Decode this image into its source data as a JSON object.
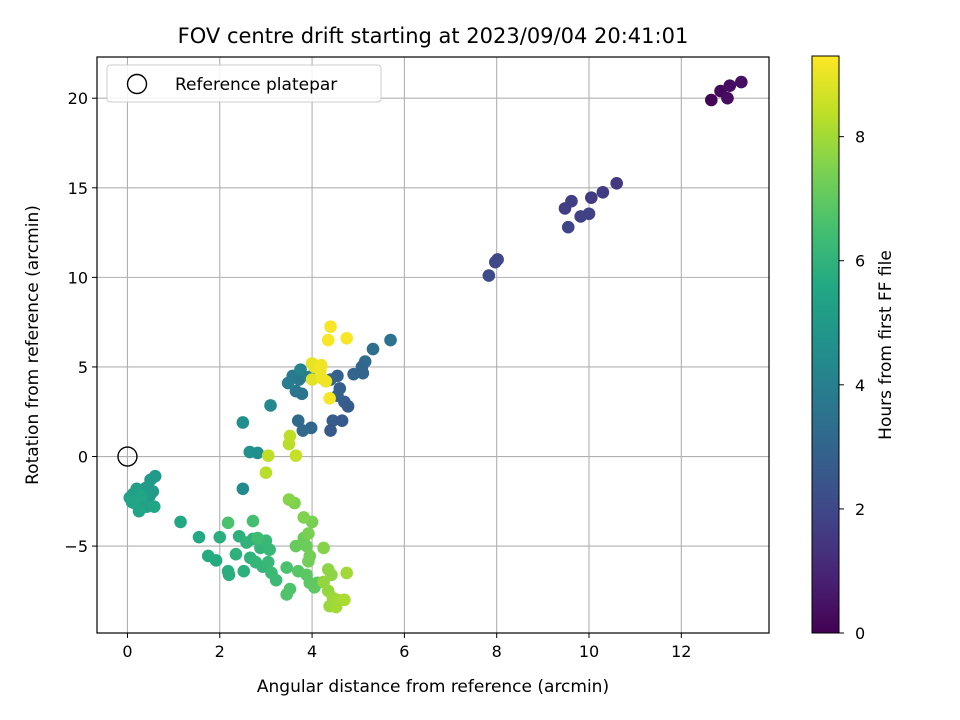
{
  "chart_data": {
    "type": "scatter",
    "title": "FOV centre drift starting at 2023/09/04 20:41:01",
    "xlabel": "Angular distance from reference (arcmin)",
    "ylabel": "Rotation from reference (arcmin)",
    "xlim": [
      -0.66,
      13.9
    ],
    "ylim": [
      -9.85,
      22.3
    ],
    "xticks": [
      0,
      2,
      4,
      6,
      8,
      10,
      12
    ],
    "yticks": [
      -5,
      0,
      5,
      10,
      15,
      20
    ],
    "grid": true,
    "legend": {
      "position": "top-left",
      "entries": [
        "Reference platepar"
      ]
    },
    "reference_point": {
      "x": 0,
      "y": 0,
      "marker": "open-circle"
    },
    "colorbar": {
      "label": "Hours from first FF file",
      "colormap": "viridis",
      "range": [
        0,
        9.3
      ],
      "ticks": [
        0,
        2,
        4,
        6,
        8
      ]
    },
    "points": [
      {
        "x": 12.65,
        "y": 19.9,
        "c": 0.1
      },
      {
        "x": 12.85,
        "y": 20.4,
        "c": 0.2
      },
      {
        "x": 13.0,
        "y": 20.0,
        "c": 0.3
      },
      {
        "x": 13.05,
        "y": 20.7,
        "c": 0.3
      },
      {
        "x": 13.3,
        "y": 20.9,
        "c": 0.4
      },
      {
        "x": 10.6,
        "y": 15.25,
        "c": 1.5
      },
      {
        "x": 10.3,
        "y": 14.75,
        "c": 1.6
      },
      {
        "x": 10.05,
        "y": 14.45,
        "c": 1.6
      },
      {
        "x": 9.62,
        "y": 14.25,
        "c": 1.7
      },
      {
        "x": 9.48,
        "y": 13.85,
        "c": 1.7
      },
      {
        "x": 10.0,
        "y": 13.55,
        "c": 1.8
      },
      {
        "x": 9.82,
        "y": 13.4,
        "c": 1.8
      },
      {
        "x": 9.55,
        "y": 12.8,
        "c": 1.9
      },
      {
        "x": 8.02,
        "y": 11.0,
        "c": 2.0
      },
      {
        "x": 7.97,
        "y": 10.85,
        "c": 2.0
      },
      {
        "x": 7.83,
        "y": 10.1,
        "c": 2.1
      },
      {
        "x": 5.7,
        "y": 6.5,
        "c": 3.5
      },
      {
        "x": 5.32,
        "y": 6.0,
        "c": 3.4
      },
      {
        "x": 5.15,
        "y": 5.3,
        "c": 3.2
      },
      {
        "x": 5.08,
        "y": 5.0,
        "c": 3.1
      },
      {
        "x": 5.1,
        "y": 4.65,
        "c": 3.0
      },
      {
        "x": 4.9,
        "y": 4.6,
        "c": 3.0
      },
      {
        "x": 4.55,
        "y": 4.5,
        "c": 2.9
      },
      {
        "x": 4.6,
        "y": 3.8,
        "c": 2.8
      },
      {
        "x": 4.7,
        "y": 3.05,
        "c": 2.8
      },
      {
        "x": 4.78,
        "y": 2.8,
        "c": 2.7
      },
      {
        "x": 4.45,
        "y": 2.0,
        "c": 2.7
      },
      {
        "x": 4.65,
        "y": 2.0,
        "c": 2.6
      },
      {
        "x": 4.4,
        "y": 1.45,
        "c": 2.6
      },
      {
        "x": 4.55,
        "y": 3.4,
        "c": 2.9
      },
      {
        "x": 4.4,
        "y": 4.3,
        "c": 3.0
      },
      {
        "x": 3.98,
        "y": 1.6,
        "c": 3.1
      },
      {
        "x": 3.8,
        "y": 1.45,
        "c": 3.2
      },
      {
        "x": 3.7,
        "y": 2.0,
        "c": 3.2
      },
      {
        "x": 3.78,
        "y": 3.5,
        "c": 3.6
      },
      {
        "x": 3.65,
        "y": 3.65,
        "c": 3.6
      },
      {
        "x": 3.72,
        "y": 4.3,
        "c": 3.7
      },
      {
        "x": 3.58,
        "y": 4.5,
        "c": 3.8
      },
      {
        "x": 3.48,
        "y": 4.1,
        "c": 3.9
      },
      {
        "x": 3.75,
        "y": 4.85,
        "c": 4.1
      },
      {
        "x": 3.1,
        "y": 2.85,
        "c": 4.3
      },
      {
        "x": 3.95,
        "y": 4.45,
        "c": 3.9
      },
      {
        "x": 2.5,
        "y": 1.9,
        "c": 4.6
      },
      {
        "x": 2.65,
        "y": 0.25,
        "c": 4.7
      },
      {
        "x": 2.82,
        "y": 0.2,
        "c": 4.6
      },
      {
        "x": 2.5,
        "y": -1.8,
        "c": 4.4
      },
      {
        "x": 0.6,
        "y": -1.1,
        "c": 5.0
      },
      {
        "x": 0.5,
        "y": -1.3,
        "c": 5.0
      },
      {
        "x": 0.55,
        "y": -1.95,
        "c": 5.1
      },
      {
        "x": 0.4,
        "y": -1.75,
        "c": 5.1
      },
      {
        "x": 0.48,
        "y": -2.2,
        "c": 5.1
      },
      {
        "x": 0.35,
        "y": -2.5,
        "c": 5.2
      },
      {
        "x": 0.2,
        "y": -1.8,
        "c": 5.2
      },
      {
        "x": 0.12,
        "y": -2.1,
        "c": 5.2
      },
      {
        "x": 0.05,
        "y": -2.3,
        "c": 5.3
      },
      {
        "x": 0.15,
        "y": -2.6,
        "c": 5.3
      },
      {
        "x": 0.28,
        "y": -2.75,
        "c": 5.3
      },
      {
        "x": 0.42,
        "y": -2.8,
        "c": 5.3
      },
      {
        "x": 0.58,
        "y": -2.8,
        "c": 5.4
      },
      {
        "x": 0.25,
        "y": -3.05,
        "c": 5.4
      },
      {
        "x": 0.1,
        "y": -2.55,
        "c": 5.4
      },
      {
        "x": 0.3,
        "y": -2.2,
        "c": 5.4
      },
      {
        "x": 1.15,
        "y": -3.65,
        "c": 5.6
      },
      {
        "x": 1.55,
        "y": -4.5,
        "c": 5.6
      },
      {
        "x": 1.75,
        "y": -5.55,
        "c": 5.7
      },
      {
        "x": 1.92,
        "y": -5.8,
        "c": 5.7
      },
      {
        "x": 2.0,
        "y": -4.5,
        "c": 5.8
      },
      {
        "x": 2.18,
        "y": -6.4,
        "c": 5.8
      },
      {
        "x": 2.2,
        "y": -6.6,
        "c": 5.8
      },
      {
        "x": 2.35,
        "y": -5.45,
        "c": 5.9
      },
      {
        "x": 2.42,
        "y": -4.45,
        "c": 5.9
      },
      {
        "x": 2.52,
        "y": -6.4,
        "c": 5.9
      },
      {
        "x": 2.58,
        "y": -4.8,
        "c": 6.0
      },
      {
        "x": 2.66,
        "y": -5.65,
        "c": 6.0
      },
      {
        "x": 2.72,
        "y": -4.6,
        "c": 6.0
      },
      {
        "x": 2.78,
        "y": -5.9,
        "c": 6.1
      },
      {
        "x": 2.88,
        "y": -5.1,
        "c": 6.1
      },
      {
        "x": 2.93,
        "y": -6.15,
        "c": 6.1
      },
      {
        "x": 3.0,
        "y": -4.7,
        "c": 6.2
      },
      {
        "x": 3.05,
        "y": -5.9,
        "c": 6.2
      },
      {
        "x": 3.08,
        "y": -5.2,
        "c": 6.2
      },
      {
        "x": 3.12,
        "y": -6.5,
        "c": 6.3
      },
      {
        "x": 3.22,
        "y": -6.9,
        "c": 6.3
      },
      {
        "x": 2.82,
        "y": -4.55,
        "c": 6.4
      },
      {
        "x": 2.72,
        "y": -3.6,
        "c": 6.5
      },
      {
        "x": 2.18,
        "y": -3.7,
        "c": 6.6
      },
      {
        "x": 3.45,
        "y": -6.2,
        "c": 6.6
      },
      {
        "x": 3.52,
        "y": -7.4,
        "c": 6.7
      },
      {
        "x": 3.45,
        "y": -7.7,
        "c": 6.7
      },
      {
        "x": 3.7,
        "y": -6.4,
        "c": 6.8
      },
      {
        "x": 3.88,
        "y": -6.6,
        "c": 6.9
      },
      {
        "x": 3.95,
        "y": -7.05,
        "c": 6.9
      },
      {
        "x": 4.05,
        "y": -7.3,
        "c": 7.0
      },
      {
        "x": 4.12,
        "y": -7.05,
        "c": 7.0
      },
      {
        "x": 3.65,
        "y": -5.0,
        "c": 7.1
      },
      {
        "x": 3.82,
        "y": -4.55,
        "c": 7.2
      },
      {
        "x": 3.88,
        "y": -5.0,
        "c": 7.2
      },
      {
        "x": 3.95,
        "y": -5.55,
        "c": 7.3
      },
      {
        "x": 3.92,
        "y": -5.85,
        "c": 7.3
      },
      {
        "x": 3.92,
        "y": -4.3,
        "c": 7.4
      },
      {
        "x": 4.0,
        "y": -3.65,
        "c": 7.4
      },
      {
        "x": 3.82,
        "y": -3.4,
        "c": 7.5
      },
      {
        "x": 3.62,
        "y": -2.6,
        "c": 7.5
      },
      {
        "x": 3.5,
        "y": -2.4,
        "c": 7.6
      },
      {
        "x": 4.25,
        "y": -5.1,
        "c": 7.6
      },
      {
        "x": 4.35,
        "y": -6.3,
        "c": 7.7
      },
      {
        "x": 4.42,
        "y": -6.6,
        "c": 7.7
      },
      {
        "x": 4.25,
        "y": -7.0,
        "c": 7.8
      },
      {
        "x": 4.35,
        "y": -7.5,
        "c": 7.8
      },
      {
        "x": 4.45,
        "y": -7.9,
        "c": 7.9
      },
      {
        "x": 4.38,
        "y": -8.35,
        "c": 7.9
      },
      {
        "x": 4.55,
        "y": -8.0,
        "c": 8.0
      },
      {
        "x": 4.52,
        "y": -8.4,
        "c": 8.0
      },
      {
        "x": 4.7,
        "y": -8.0,
        "c": 8.1
      },
      {
        "x": 4.75,
        "y": -6.5,
        "c": 8.0
      },
      {
        "x": 3.0,
        "y": -0.9,
        "c": 8.3
      },
      {
        "x": 3.5,
        "y": 0.7,
        "c": 8.3
      },
      {
        "x": 3.05,
        "y": 0.05,
        "c": 8.4
      },
      {
        "x": 3.52,
        "y": 1.15,
        "c": 8.4
      },
      {
        "x": 3.65,
        "y": 0.05,
        "c": 8.5
      },
      {
        "x": 4.0,
        "y": 4.3,
        "c": 8.9
      },
      {
        "x": 4.0,
        "y": 5.2,
        "c": 9.0
      },
      {
        "x": 4.05,
        "y": 5.0,
        "c": 9.0
      },
      {
        "x": 4.18,
        "y": 4.85,
        "c": 9.1
      },
      {
        "x": 4.2,
        "y": 5.1,
        "c": 9.1
      },
      {
        "x": 4.22,
        "y": 4.35,
        "c": 9.1
      },
      {
        "x": 4.3,
        "y": 4.2,
        "c": 9.1
      },
      {
        "x": 4.35,
        "y": 6.5,
        "c": 9.2
      },
      {
        "x": 4.4,
        "y": 7.25,
        "c": 9.2
      },
      {
        "x": 4.75,
        "y": 6.6,
        "c": 9.2
      },
      {
        "x": 4.38,
        "y": 3.25,
        "c": 9.2
      }
    ]
  }
}
